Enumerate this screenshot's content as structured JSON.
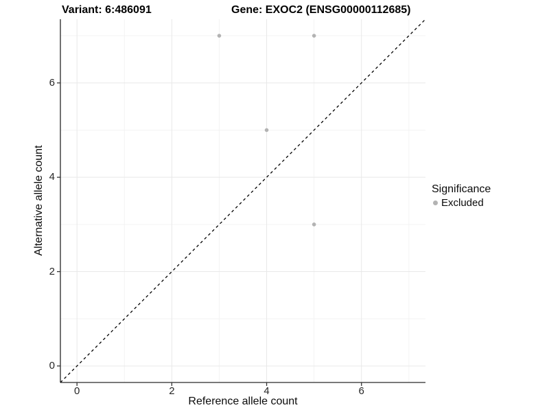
{
  "titles": {
    "variant": "Variant: 6:486091",
    "gene": "Gene: EXOC2 (ENSG00000112685)"
  },
  "chart_data": {
    "type": "scatter",
    "title": "Variant: 6:486091 — Gene: EXOC2 (ENSG00000112685)",
    "xlabel": "Reference allele count",
    "ylabel": "Alternative allele count",
    "xlim": [
      -0.35,
      7.35
    ],
    "ylim": [
      -0.35,
      7.35
    ],
    "xticks": [
      0,
      2,
      4,
      6
    ],
    "yticks": [
      0,
      2,
      4,
      6
    ],
    "xticks_minor": [
      1,
      3,
      5,
      7
    ],
    "yticks_minor": [
      1,
      3,
      5,
      7
    ],
    "grid": true,
    "series": [
      {
        "name": "Excluded",
        "color": "#b3b3b3",
        "points": [
          [
            3,
            7
          ],
          [
            5,
            7
          ],
          [
            4,
            5
          ],
          [
            5,
            3
          ]
        ]
      }
    ],
    "reference_line": {
      "kind": "identity",
      "slope": 1,
      "intercept": 0,
      "style": "dashed",
      "color": "#000000"
    },
    "legend": {
      "position": "right",
      "title": "Significance",
      "entries": [
        {
          "label": "Excluded",
          "color": "#b3b3b3"
        }
      ]
    }
  },
  "colors": {
    "point_excluded": "#b3b3b3",
    "grid_major": "#e8e8e8",
    "grid_minor": "#f3f3f3",
    "axis_line": "#4d4d4d",
    "tick_mark": "#333333",
    "dashed_line": "#000000",
    "background": "#ffffff"
  }
}
